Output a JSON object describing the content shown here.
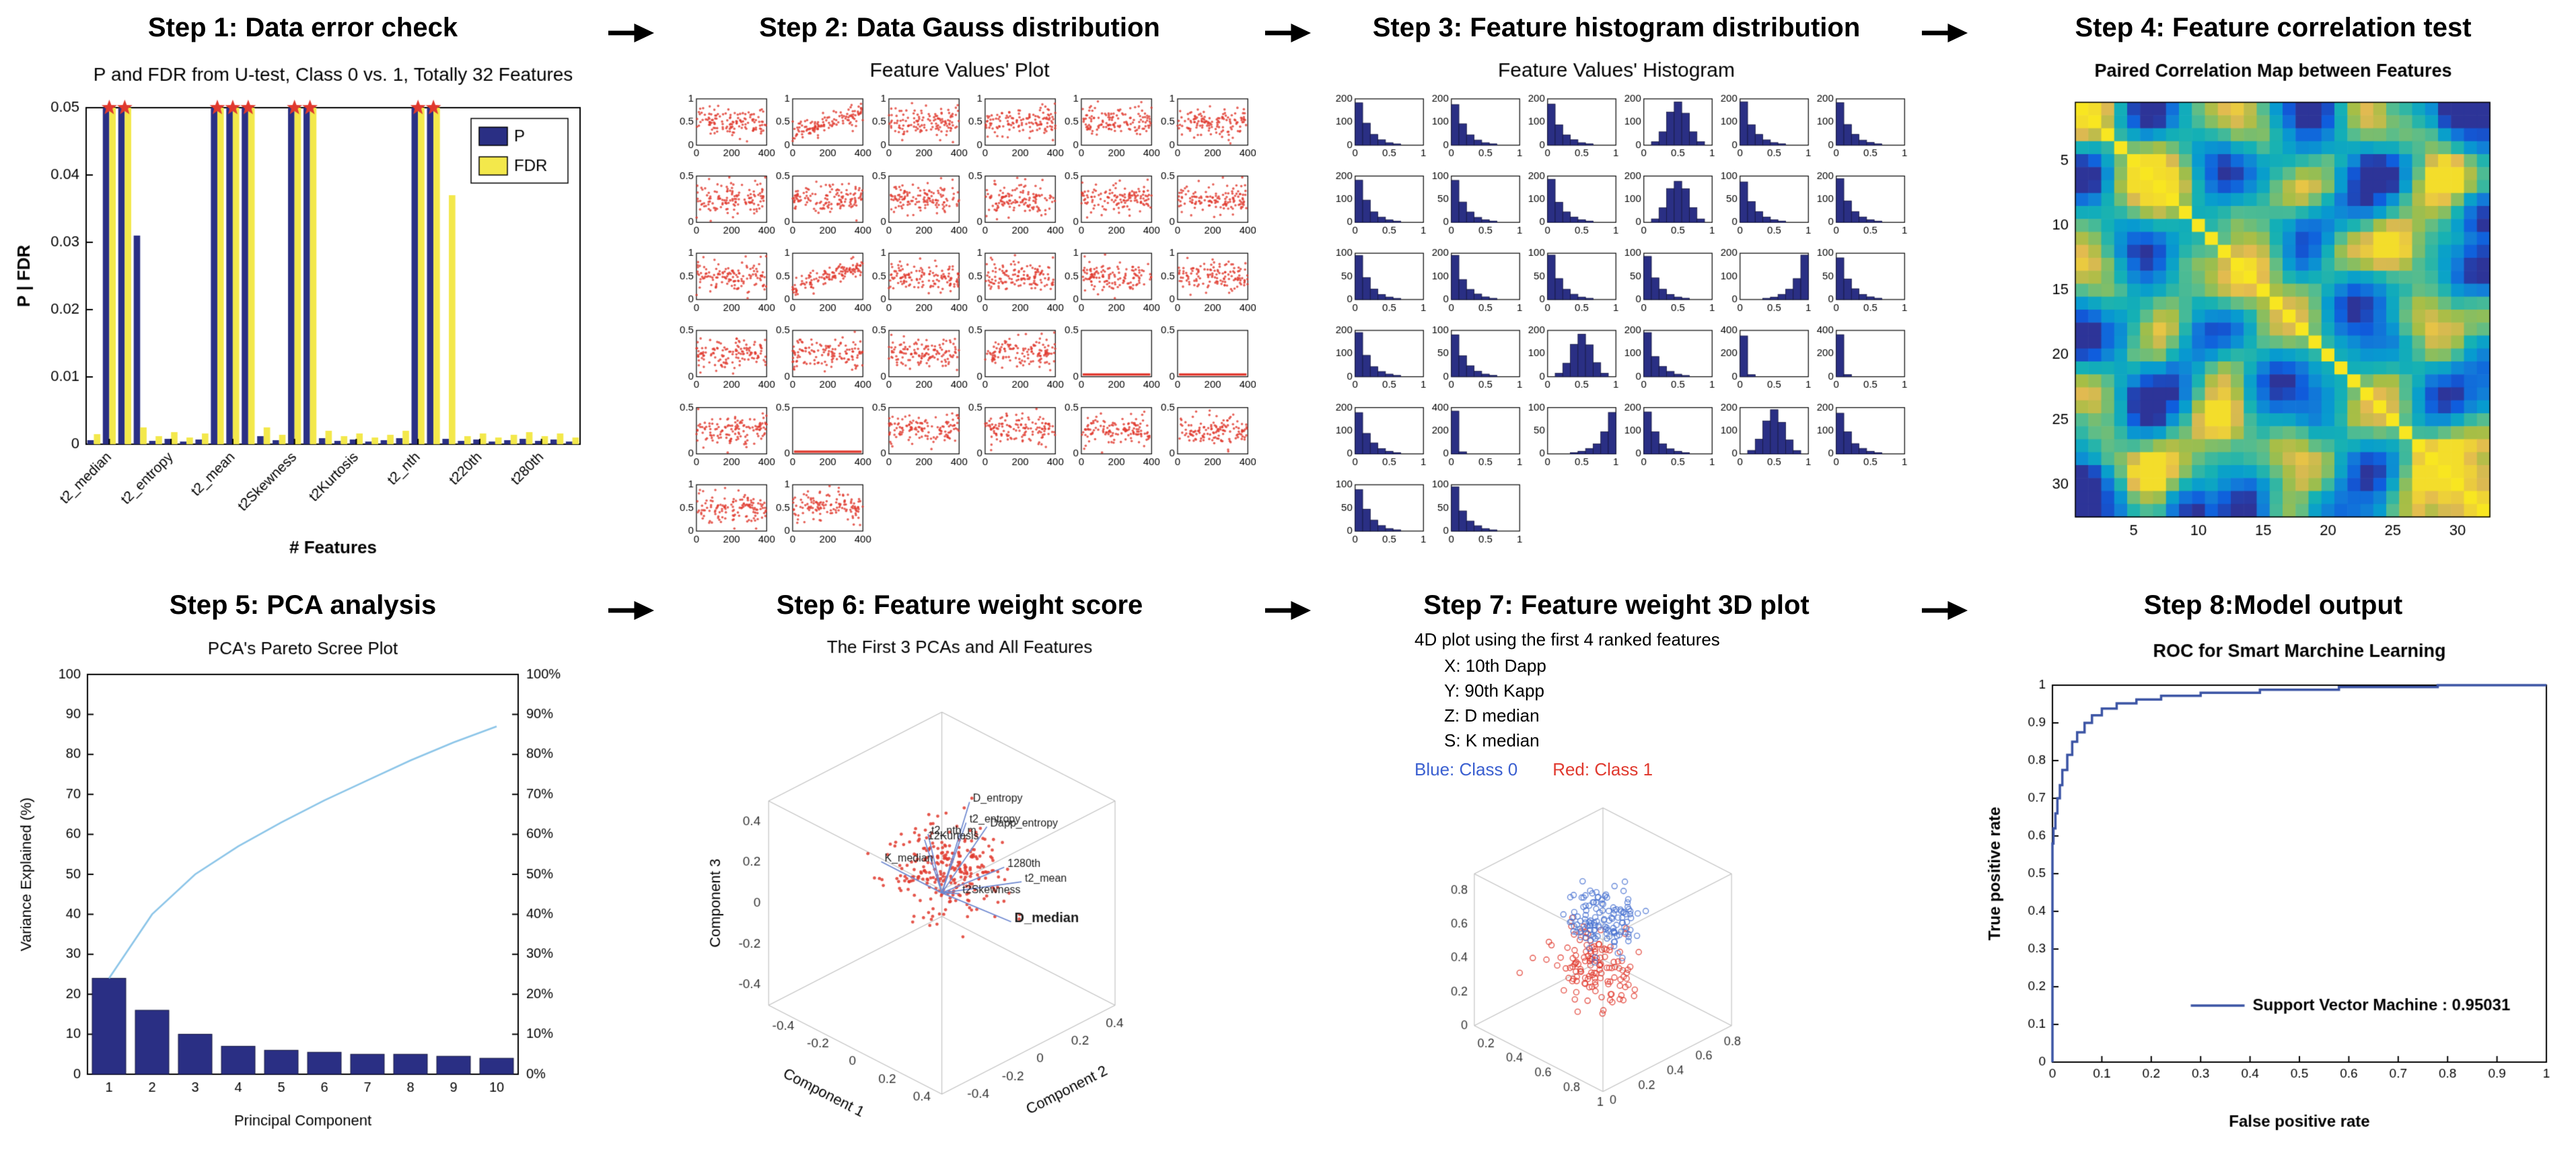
{
  "figure": {
    "background": "#ffffff",
    "arrow_color": "#000000"
  },
  "steps": [
    {
      "title": "Step 1: Data error check"
    },
    {
      "title": "Step 2: Data Gauss distribution"
    },
    {
      "title": "Step 3: Feature histogram distribution"
    },
    {
      "title": "Step 4: Feature correlation test"
    },
    {
      "title": "Step 5: PCA analysis"
    },
    {
      "title": "Step 6: Feature weight score"
    },
    {
      "title": "Step 7: Feature weight 3D plot"
    },
    {
      "title": "Step 8:Model output"
    }
  ],
  "chart_data": [
    {
      "panel": 1,
      "type": "bar",
      "title": "P and FDR from U-test, Class 0 vs. 1, Totally 32 Features",
      "xlabel": "# Features",
      "ylabel": "P | FDR",
      "ylim": [
        0,
        0.05
      ],
      "yticks": [
        0,
        0.01,
        0.02,
        0.03,
        0.04,
        0.05
      ],
      "n_features": 32,
      "xtick_labels": [
        "t2_median",
        "t2_entropy",
        "t2_mean",
        "t2Skewness",
        "t2Kurtosis",
        "t2_nth",
        "t220th",
        "t280th"
      ],
      "legend": [
        "P",
        "FDR"
      ],
      "series": [
        {
          "name": "P",
          "color": "#2a2f84",
          "values": [
            0.0006,
            0.05,
            0.05,
            0.031,
            0.0005,
            0.0008,
            0.0004,
            0.0007,
            0.05,
            0.05,
            0.05,
            0.0012,
            0.0006,
            0.05,
            0.05,
            0.0009,
            0.0005,
            0.0007,
            0.0004,
            0.0006,
            0.0009,
            0.05,
            0.05,
            0.0008,
            0.0005,
            0.0007,
            0.0004,
            0.0006,
            0.0008,
            0.0005,
            0.0007,
            0.0004
          ]
        },
        {
          "name": "FDR",
          "color": "#f3e84b",
          "values": [
            0.0015,
            0.05,
            0.05,
            0.0025,
            0.0012,
            0.0018,
            0.001,
            0.0016,
            0.05,
            0.05,
            0.05,
            0.0025,
            0.0014,
            0.05,
            0.05,
            0.002,
            0.0012,
            0.0016,
            0.001,
            0.0014,
            0.002,
            0.05,
            0.05,
            0.037,
            0.0012,
            0.0016,
            0.001,
            0.0014,
            0.0018,
            0.0012,
            0.0016,
            0.001
          ]
        }
      ],
      "significant_marker": {
        "shape": "pentagram",
        "color": "#e0392e",
        "y": 0.05,
        "indices": [
          1,
          2,
          8,
          9,
          10,
          13,
          14,
          21,
          22
        ]
      }
    },
    {
      "panel": 2,
      "type": "scatter-grid",
      "title": "Feature Values' Plot",
      "grid": {
        "rows": 6,
        "cols": 6,
        "count": 32
      },
      "xlim": [
        0,
        400
      ],
      "xticks": [
        0,
        200,
        400
      ],
      "point_color": "#e0392e",
      "cells": [
        {
          "ymax": 1,
          "pattern": "cloud"
        },
        {
          "ymax": 1,
          "pattern": "up"
        },
        {
          "ymax": 1,
          "pattern": "cloud"
        },
        {
          "ymax": 1,
          "pattern": "cloud"
        },
        {
          "ymax": 1,
          "pattern": "cloud"
        },
        {
          "ymax": 1,
          "pattern": "cloud"
        },
        {
          "ymax": 0.5,
          "pattern": "cloud"
        },
        {
          "ymax": 0.5,
          "pattern": "cloud"
        },
        {
          "ymax": 0.5,
          "pattern": "cloud"
        },
        {
          "ymax": 0.5,
          "pattern": "cloud"
        },
        {
          "ymax": 0.5,
          "pattern": "cloud"
        },
        {
          "ymax": 0.5,
          "pattern": "cloud"
        },
        {
          "ymax": 1,
          "pattern": "cloud"
        },
        {
          "ymax": 1,
          "pattern": "up"
        },
        {
          "ymax": 1,
          "pattern": "cloud"
        },
        {
          "ymax": 1,
          "pattern": "cloud"
        },
        {
          "ymax": 1,
          "pattern": "cloud"
        },
        {
          "ymax": 1,
          "pattern": "cloud"
        },
        {
          "ymax": 0.5,
          "pattern": "cloud"
        },
        {
          "ymax": 0.5,
          "pattern": "cloud"
        },
        {
          "ymax": 0.5,
          "pattern": "cloud"
        },
        {
          "ymax": 0.5,
          "pattern": "cloud"
        },
        {
          "ymax": 0.5,
          "pattern": "flat"
        },
        {
          "ymax": 0.5,
          "pattern": "flat"
        },
        {
          "ymax": 0.5,
          "pattern": "cloud"
        },
        {
          "ymax": 0.5,
          "pattern": "flat"
        },
        {
          "ymax": 0.5,
          "pattern": "cloud"
        },
        {
          "ymax": 0.5,
          "pattern": "cloud"
        },
        {
          "ymax": 0.5,
          "pattern": "cloud"
        },
        {
          "ymax": 0.5,
          "pattern": "cloud"
        },
        {
          "ymax": 1,
          "pattern": "cloud"
        },
        {
          "ymax": 1,
          "pattern": "cloud"
        }
      ]
    },
    {
      "panel": 3,
      "type": "hist-grid",
      "title": "Feature Values' Histogram",
      "grid": {
        "rows": 6,
        "cols": 6,
        "count": 32
      },
      "bar_color": "#2a2f84",
      "xticks": [
        0,
        0.5,
        1
      ],
      "cells": [
        {
          "ymax": 200,
          "shape": "rskew"
        },
        {
          "ymax": 200,
          "shape": "rskew"
        },
        {
          "ymax": 200,
          "shape": "rskew"
        },
        {
          "ymax": 200,
          "shape": "bell"
        },
        {
          "ymax": 200,
          "shape": "rskew"
        },
        {
          "ymax": 200,
          "shape": "rskew"
        },
        {
          "ymax": 200,
          "shape": "rskew"
        },
        {
          "ymax": 100,
          "shape": "rskew"
        },
        {
          "ymax": 200,
          "shape": "rskew"
        },
        {
          "ymax": 200,
          "shape": "bell"
        },
        {
          "ymax": 100,
          "shape": "rskew"
        },
        {
          "ymax": 200,
          "shape": "rskew"
        },
        {
          "ymax": 100,
          "shape": "rskew"
        },
        {
          "ymax": 200,
          "shape": "rskew"
        },
        {
          "ymax": 100,
          "shape": "rskew"
        },
        {
          "ymax": 100,
          "shape": "rskew"
        },
        {
          "ymax": 200,
          "shape": "lskew"
        },
        {
          "ymax": 100,
          "shape": "rskew"
        },
        {
          "ymax": 200,
          "shape": "rskew"
        },
        {
          "ymax": 100,
          "shape": "rskew"
        },
        {
          "ymax": 200,
          "shape": "bell"
        },
        {
          "ymax": 200,
          "shape": "rskew"
        },
        {
          "ymax": 400,
          "shape": "spike"
        },
        {
          "ymax": 400,
          "shape": "spike"
        },
        {
          "ymax": 200,
          "shape": "rskew"
        },
        {
          "ymax": 400,
          "shape": "spike"
        },
        {
          "ymax": 100,
          "shape": "lskew"
        },
        {
          "ymax": 200,
          "shape": "rskew"
        },
        {
          "ymax": 200,
          "shape": "bell"
        },
        {
          "ymax": 200,
          "shape": "rskew"
        },
        {
          "ymax": 100,
          "shape": "rskew"
        },
        {
          "ymax": 100,
          "shape": "rskew"
        }
      ]
    },
    {
      "panel": 4,
      "type": "heatmap",
      "title": "Paired Correlation Map between Features",
      "size": 32,
      "ticks": [
        5,
        10,
        15,
        20,
        25,
        30
      ],
      "colormap": "parula",
      "value_range": [
        -1,
        1
      ],
      "diagonal": 1,
      "pattern": "random-symmetric",
      "seed": 42
    },
    {
      "panel": 5,
      "type": "pareto",
      "title": "PCA's Pareto Scree Plot",
      "xlabel": "Principal Component",
      "ylabel": "Variance Explained (%)",
      "categories": [
        1,
        2,
        3,
        4,
        5,
        6,
        7,
        8,
        9,
        10
      ],
      "bar_values": [
        24,
        16,
        10,
        7,
        6,
        5.5,
        5,
        5,
        4.5,
        4
      ],
      "cumulative": [
        24,
        40,
        50,
        57,
        63,
        68.5,
        73.5,
        78.5,
        83,
        87
      ],
      "bar_color": "#2a2f84",
      "line_color": "#8cc5e8",
      "ylim_left": [
        0,
        100
      ],
      "left_ticks": [
        0,
        10,
        20,
        30,
        40,
        50,
        60,
        70,
        80,
        90,
        100
      ],
      "right_axis_ticks": [
        "0%",
        "10%",
        "20%",
        "30%",
        "40%",
        "50%",
        "60%",
        "70%",
        "80%",
        "90%",
        "100%"
      ]
    },
    {
      "panel": 6,
      "type": "biplot3d",
      "title": "The First 3 PCAs and All Features",
      "xlabel": "Component 1",
      "ylabel": "Component 2",
      "zlabel": "Component 3",
      "ticks": [
        -0.4,
        -0.2,
        0,
        0.2,
        0.4
      ],
      "lim": 0.5,
      "point_color": "#e0392e",
      "vector_color": "#6d87cf",
      "n_points": 280,
      "vectors": [
        {
          "label": "D_entropy",
          "x": 0.04,
          "y": 0.12,
          "z": 0.46
        },
        {
          "label": "t2_entropy",
          "x": 0.1,
          "y": 0.04,
          "z": 0.42
        },
        {
          "label": "Dapp_entropy",
          "x": 0.16,
          "y": 0.1,
          "z": 0.4
        },
        {
          "label": "1280th",
          "x": 0.3,
          "y": 0.06,
          "z": 0.28
        },
        {
          "label": "t2_nth_m",
          "x": -0.13,
          "y": 0.05,
          "z": 0.26
        },
        {
          "label": "t2_mean",
          "x": 0.34,
          "y": 0.12,
          "z": 0.2
        },
        {
          "label": "12Kurtosis",
          "x": -0.2,
          "y": 0.1,
          "z": 0.18
        },
        {
          "label": "t2Skewness",
          "x": 0.18,
          "y": -0.08,
          "z": 0.16
        },
        {
          "label": "K_median",
          "x": -0.27,
          "y": -0.08,
          "z": 0.12
        },
        {
          "label": "D_median",
          "x": 0.42,
          "y": -0.02,
          "z": 0.1,
          "bold": true
        }
      ]
    },
    {
      "panel": 7,
      "type": "scatter3d",
      "title": "4D plot using the first 4 ranked features",
      "annotations": [
        "X:  10th Dapp",
        "Y:  90th Kapp",
        "Z:  D  median",
        "S:  K  median"
      ],
      "legend": [
        {
          "label": "Blue: Class 0",
          "color": "#3a5fd0"
        },
        {
          "label": "Red: Class 1",
          "color": "#e0392e"
        }
      ],
      "xlim": [
        0.1,
        1
      ],
      "ylim": [
        0,
        0.9
      ],
      "zlim": [
        0,
        0.9
      ],
      "xticks": [
        0.2,
        0.4,
        0.6,
        0.8,
        1
      ],
      "yticks": [
        0,
        0.2,
        0.4,
        0.6,
        0.8
      ],
      "zticks": [
        0,
        0.2,
        0.4,
        0.6,
        0.8
      ],
      "classes": [
        {
          "name": "Class 1",
          "color": "#e0392e",
          "center": [
            0.5,
            0.42,
            0.34
          ],
          "spread": [
            0.12,
            0.1,
            0.1
          ],
          "n": 130
        },
        {
          "name": "Class 0",
          "color": "#4a73d1",
          "center": [
            0.55,
            0.45,
            0.62
          ],
          "spread": [
            0.1,
            0.09,
            0.08
          ],
          "n": 130
        }
      ]
    },
    {
      "panel": 8,
      "type": "roc",
      "title": "ROC for Smart Marchine Learning",
      "xlabel": "False positive rate",
      "ylabel": "True positive rate",
      "xticks": [
        0,
        0.1,
        0.2,
        0.3,
        0.4,
        0.5,
        0.6,
        0.7,
        0.8,
        0.9,
        1
      ],
      "yticks": [
        0,
        0.1,
        0.2,
        0.3,
        0.4,
        0.5,
        0.6,
        0.7,
        0.8,
        0.9,
        1
      ],
      "line_color": "#3a53a4",
      "legend": "Support Vector Machine : 0.95031",
      "curve": [
        [
          0,
          0
        ],
        [
          0.002,
          0.58
        ],
        [
          0.006,
          0.62
        ],
        [
          0.01,
          0.66
        ],
        [
          0.015,
          0.7
        ],
        [
          0.02,
          0.735
        ],
        [
          0.03,
          0.775
        ],
        [
          0.04,
          0.815
        ],
        [
          0.05,
          0.85
        ],
        [
          0.065,
          0.875
        ],
        [
          0.08,
          0.9
        ],
        [
          0.1,
          0.92
        ],
        [
          0.13,
          0.938
        ],
        [
          0.17,
          0.952
        ],
        [
          0.22,
          0.962
        ],
        [
          0.3,
          0.972
        ],
        [
          0.42,
          0.98
        ],
        [
          0.58,
          0.988
        ],
        [
          0.78,
          0.995
        ],
        [
          1,
          1
        ]
      ]
    }
  ]
}
